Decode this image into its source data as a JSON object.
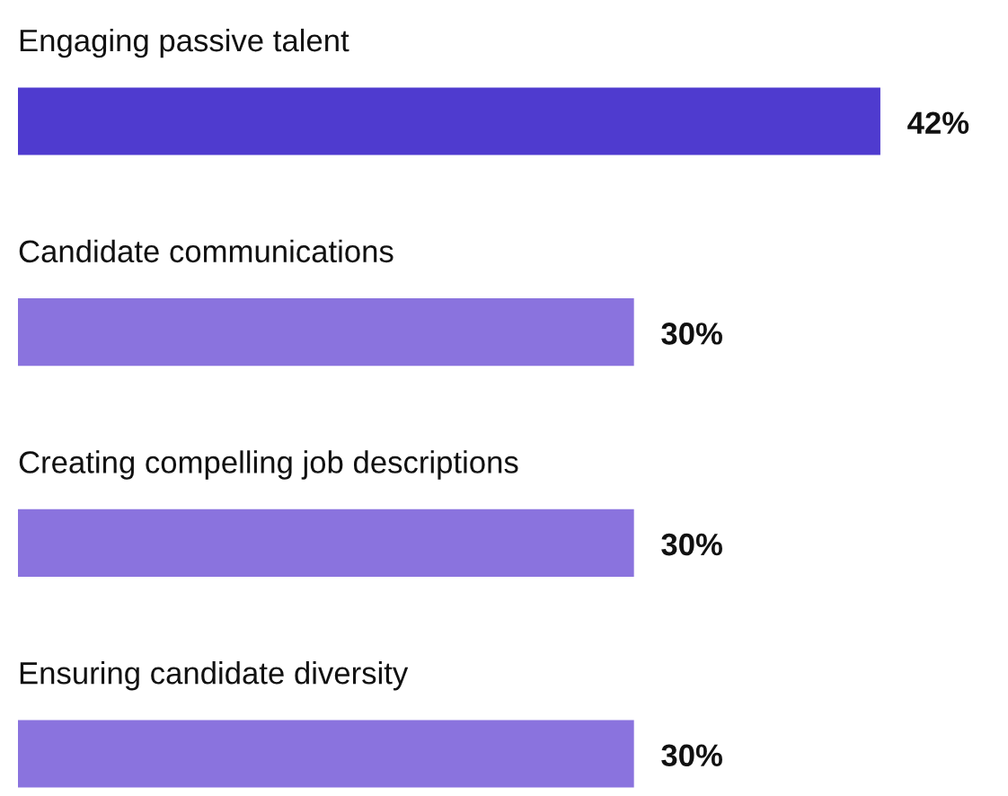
{
  "chart_data": {
    "type": "bar",
    "orientation": "horizontal",
    "categories": [
      "Engaging passive talent",
      "Candidate communications",
      "Creating compelling job descriptions",
      "Ensuring candidate diversity"
    ],
    "values": [
      42,
      30,
      30,
      30
    ],
    "colors": [
      "#4f3bcf",
      "#8a73de",
      "#8a73de",
      "#8a73de"
    ],
    "value_labels": [
      "42%",
      "30%",
      "30%",
      "30%"
    ]
  }
}
